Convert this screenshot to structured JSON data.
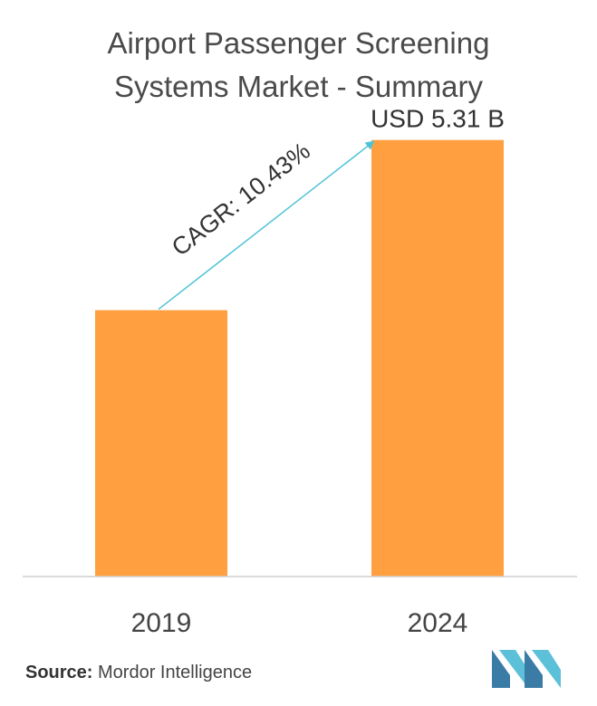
{
  "title": {
    "line1": "Airport Passenger Screening",
    "line2": "Systems Market - Summary"
  },
  "chart_data": {
    "type": "bar",
    "categories": [
      "2019",
      "2024"
    ],
    "values": [
      3.24,
      5.31
    ],
    "value_labels": [
      "",
      "USD 5.31 B"
    ],
    "ylim": [
      0,
      6
    ],
    "annotation": "CAGR: 10.43%",
    "grid": false,
    "bar_color": "#ff9f40",
    "arrow_color": "#4fc3d6",
    "axis_color": "#cfcfcf"
  },
  "source": {
    "label": "Source:",
    "text": " Mordor Intelligence"
  },
  "logo": {
    "icon": "mordor-intelligence-logo",
    "colors": [
      "#3a7ca5",
      "#5bc0d8"
    ]
  }
}
